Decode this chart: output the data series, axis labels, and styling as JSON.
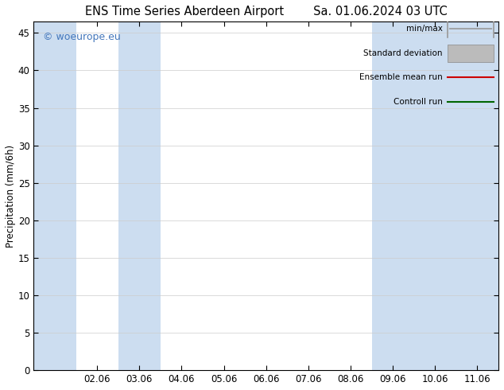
{
  "title_left": "ENS Time Series Aberdeen Airport",
  "title_right": "Sa. 01.06.2024 03 UTC",
  "ylabel": "Precipitation (mm/6h)",
  "ylim": [
    0,
    46.5
  ],
  "yticks": [
    0,
    5,
    10,
    15,
    20,
    25,
    30,
    35,
    40,
    45
  ],
  "xlabels": [
    "02.06",
    "03.06",
    "04.06",
    "05.06",
    "06.06",
    "07.06",
    "08.06",
    "09.06",
    "10.06",
    "11.06"
  ],
  "background_color": "#ffffff",
  "plot_bg_color": "#ffffff",
  "blue_shade_color": "#ccddf0",
  "blue_band_xranges": [
    [
      -0.5,
      0.5
    ],
    [
      1.5,
      2.5
    ],
    [
      7.5,
      8.5
    ],
    [
      8.5,
      9.5
    ],
    [
      9.5,
      10.5
    ]
  ],
  "watermark": "© woeurope.eu",
  "watermark_color": "#4477bb",
  "legend_items": [
    "min/max",
    "Standard deviation",
    "Ensemble mean run",
    "Controll run"
  ],
  "legend_line_colors": [
    "#aaaaaa",
    "#bbbbbb",
    "#dd0000",
    "#007700"
  ],
  "title_fontsize": 10.5,
  "axis_fontsize": 8.5,
  "watermark_fontsize": 9
}
